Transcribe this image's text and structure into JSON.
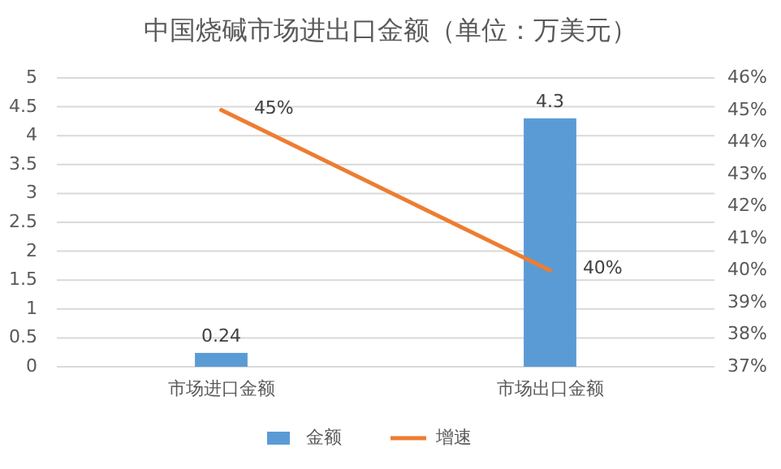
{
  "chart_data": {
    "type": "bar",
    "title": "中国烧碱市场进出口金额（单位：万美元）",
    "categories": [
      "市场进口金额",
      "市场出口金额"
    ],
    "series": [
      {
        "name": "金额",
        "color": "#5b9bd5",
        "values": [
          0.24,
          4.3
        ],
        "value_labels": [
          "0.24",
          "4.3"
        ]
      },
      {
        "name": "增速",
        "type": "line",
        "axis": "y2",
        "color": "#ed7d31",
        "values": [
          45,
          40
        ],
        "value_labels": [
          "45%",
          "40%"
        ]
      }
    ],
    "ylim": [
      0,
      5
    ],
    "yticks": [
      0,
      0.5,
      1,
      1.5,
      2,
      2.5,
      3,
      3.5,
      4,
      4.5,
      5
    ],
    "y2lim": [
      37,
      46
    ],
    "y2ticks": [
      {
        "value": 37,
        "label": "37%"
      },
      {
        "value": 38,
        "label": "38%"
      },
      {
        "value": 39,
        "label": "39%"
      },
      {
        "value": 40,
        "label": "40%"
      },
      {
        "value": 41,
        "label": "41%"
      },
      {
        "value": 42,
        "label": "42%"
      },
      {
        "value": 43,
        "label": "43%"
      },
      {
        "value": 44,
        "label": "44%"
      },
      {
        "value": 45,
        "label": "45%"
      },
      {
        "value": 46,
        "label": "46%"
      }
    ],
    "grid": "y",
    "legend": "bottom",
    "marker": "none",
    "line_style": "solid"
  }
}
